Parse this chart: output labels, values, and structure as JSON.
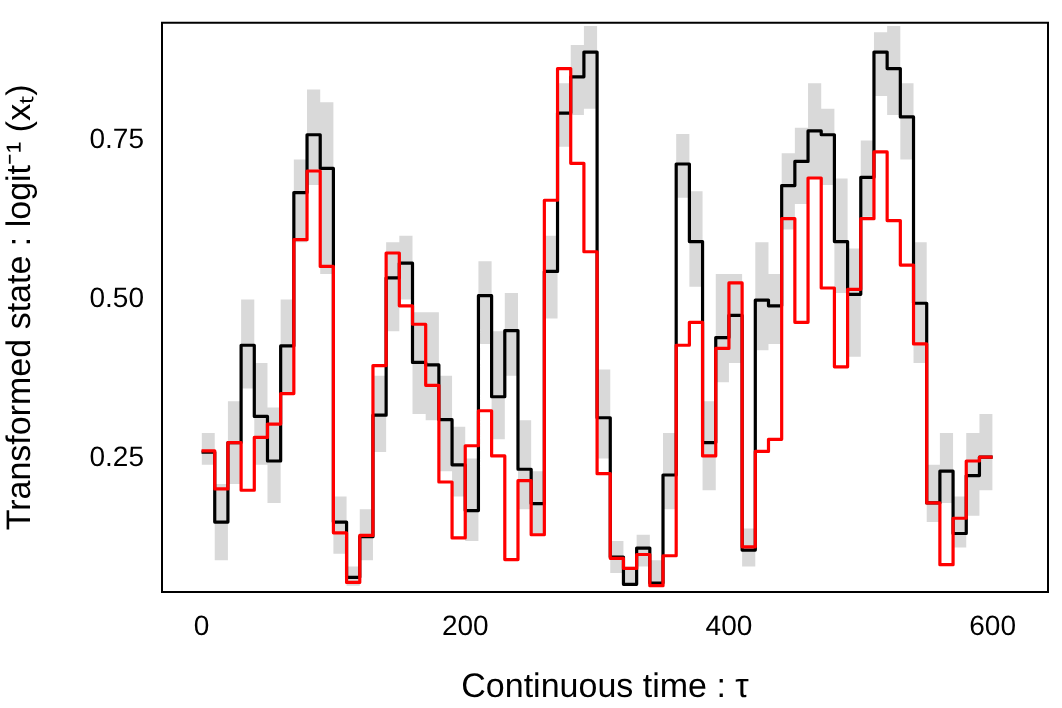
{
  "chart_data": {
    "type": "step",
    "xlabel": "Continuous time : τ",
    "ylabel": "Transformed state : logit⁻¹ (xₜ)",
    "x": [
      0,
      10,
      20,
      30,
      40,
      50,
      60,
      70,
      80,
      90,
      100,
      110,
      120,
      130,
      140,
      150,
      160,
      170,
      180,
      190,
      200,
      210,
      220,
      230,
      240,
      250,
      260,
      270,
      280,
      290,
      300,
      310,
      320,
      330,
      340,
      350,
      360,
      370,
      380,
      390,
      400,
      410,
      420,
      430,
      440,
      450,
      460,
      470,
      480,
      490,
      500,
      510,
      520,
      530,
      540,
      550,
      560,
      570,
      580,
      590,
      600
    ],
    "series": [
      {
        "color": "#000000",
        "values": [
          0.26,
          0.15,
          0.275,
          0.428,
          0.316,
          0.246,
          0.427,
          0.668,
          0.759,
          0.706,
          0.15,
          0.063,
          0.127,
          0.318,
          0.534,
          0.557,
          0.401,
          0.397,
          0.311,
          0.24,
          0.168,
          0.506,
          0.347,
          0.451,
          0.233,
          0.179,
          0.544,
          0.793,
          0.85,
          0.889,
          0.314,
          0.095,
          0.052,
          0.109,
          0.054,
          0.224,
          0.713,
          0.591,
          0.275,
          0.44,
          0.475,
          0.106,
          0.499,
          0.49,
          0.679,
          0.717,
          0.765,
          0.759,
          0.591,
          0.508,
          0.692,
          0.889,
          0.863,
          0.787,
          0.494,
          0.18,
          0.23,
          0.132,
          0.223,
          0.252,
          0.252
        ],
        "lower": [
          0.24,
          0.09,
          0.21,
          0.36,
          0.24,
          0.18,
          0.35,
          0.59,
          0.68,
          0.54,
          0.1,
          0.05,
          0.09,
          0.26,
          0.45,
          0.5,
          0.32,
          0.31,
          0.23,
          0.19,
          0.12,
          0.43,
          0.28,
          0.38,
          0.17,
          0.13,
          0.47,
          0.74,
          0.79,
          0.8,
          0.25,
          0.07,
          0.05,
          0.08,
          0.05,
          0.17,
          0.66,
          0.52,
          0.2,
          0.37,
          0.4,
          0.08,
          0.42,
          0.43,
          0.61,
          0.65,
          0.69,
          0.68,
          0.51,
          0.41,
          0.63,
          0.82,
          0.79,
          0.72,
          0.4,
          0.15,
          0.18,
          0.11,
          0.16,
          0.2,
          0.2
        ],
        "upper": [
          0.29,
          0.21,
          0.34,
          0.5,
          0.4,
          0.33,
          0.5,
          0.72,
          0.83,
          0.81,
          0.19,
          0.08,
          0.17,
          0.38,
          0.59,
          0.6,
          0.48,
          0.48,
          0.38,
          0.3,
          0.25,
          0.56,
          0.45,
          0.51,
          0.31,
          0.23,
          0.6,
          0.84,
          0.9,
          0.93,
          0.39,
          0.12,
          0.08,
          0.13,
          0.09,
          0.29,
          0.76,
          0.67,
          0.34,
          0.54,
          0.54,
          0.14,
          0.59,
          0.54,
          0.73,
          0.77,
          0.84,
          0.8,
          0.69,
          0.58,
          0.75,
          0.92,
          0.93,
          0.84,
          0.59,
          0.24,
          0.29,
          0.19,
          0.29,
          0.32,
          0.32
        ]
      },
      {
        "color": "#ff0000",
        "values": [
          0.262,
          0.202,
          0.275,
          0.2,
          0.283,
          0.304,
          0.352,
          0.594,
          0.702,
          0.552,
          0.133,
          0.055,
          0.129,
          0.396,
          0.573,
          0.49,
          0.461,
          0.365,
          0.213,
          0.125,
          0.27,
          0.325,
          0.254,
          0.091,
          0.215,
          0.13,
          0.656,
          0.863,
          0.714,
          0.575,
          0.226,
          0.093,
          0.077,
          0.099,
          0.05,
          0.097,
          0.428,
          0.464,
          0.254,
          0.423,
          0.526,
          0.111,
          0.261,
          0.28,
          0.627,
          0.464,
          0.691,
          0.518,
          0.394,
          0.516,
          0.627,
          0.732,
          0.624,
          0.554,
          0.43,
          0.18,
          0.083,
          0.156,
          0.246,
          0.252,
          0.252
        ]
      }
    ],
    "xlim": [
      -30,
      642
    ],
    "xticks": [
      0,
      200,
      400,
      600
    ],
    "ylim": [
      0.04,
      0.935
    ],
    "yticks": [
      {
        "value": 0.25,
        "label": "0.25"
      },
      {
        "value": 0.5,
        "label": "0.50"
      },
      {
        "value": 0.75,
        "label": "0.75"
      }
    ],
    "grid": false,
    "legend": false,
    "marker": "none",
    "line_style": "solid"
  }
}
